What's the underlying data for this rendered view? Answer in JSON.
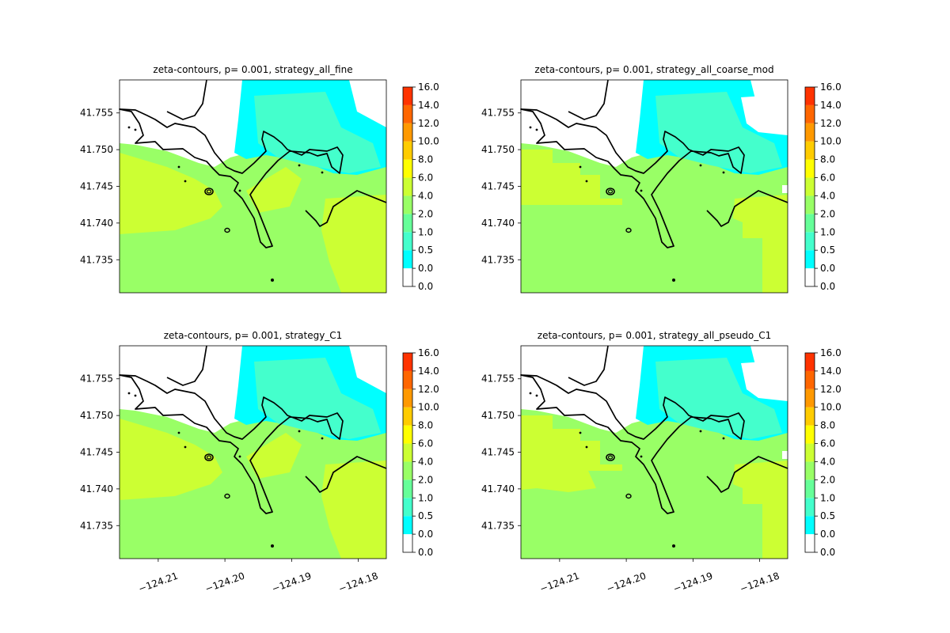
{
  "chart_data": {
    "type": "heatmap",
    "colorbar": {
      "tick_labels": [
        "0.0",
        "0.0",
        "0.5",
        "1.0",
        "2.0",
        "4.0",
        "6.0",
        "8.0",
        "10.0",
        "12.0",
        "14.0",
        "16.0"
      ],
      "colors": [
        "#ffffff",
        "#00ffff",
        "#44ffcc",
        "#66ff99",
        "#99ff66",
        "#ccff33",
        "#ffff00",
        "#ffcc00",
        "#ff9900",
        "#ff6600",
        "#ff3300",
        "#ff0000"
      ]
    },
    "lat_ticks": [
      "41.755",
      "41.750",
      "41.745",
      "41.740",
      "41.735"
    ],
    "lat_values": [
      41.755,
      41.75,
      41.745,
      41.74,
      41.735
    ],
    "lon_ticks": [
      "−124.21",
      "−124.20",
      "−124.19",
      "−124.18"
    ],
    "lon_values": [
      -124.21,
      -124.2,
      -124.19,
      -124.18
    ],
    "ylim": [
      41.7305,
      41.7595
    ],
    "xlim": [
      -124.2158,
      -124.1758
    ],
    "panels": [
      {
        "title": "zeta-contours, p= 0.001, strategy_all_fine",
        "show_xticks": false
      },
      {
        "title": "zeta-contours, p= 0.001, strategy_all_coarse_mod",
        "show_xticks": false
      },
      {
        "title": "zeta-contours, p= 0.001, strategy_C1",
        "show_xticks": true
      },
      {
        "title": "zeta-contours, p= 0.001, strategy_all_pseudo_C1",
        "show_xticks": true
      }
    ]
  }
}
